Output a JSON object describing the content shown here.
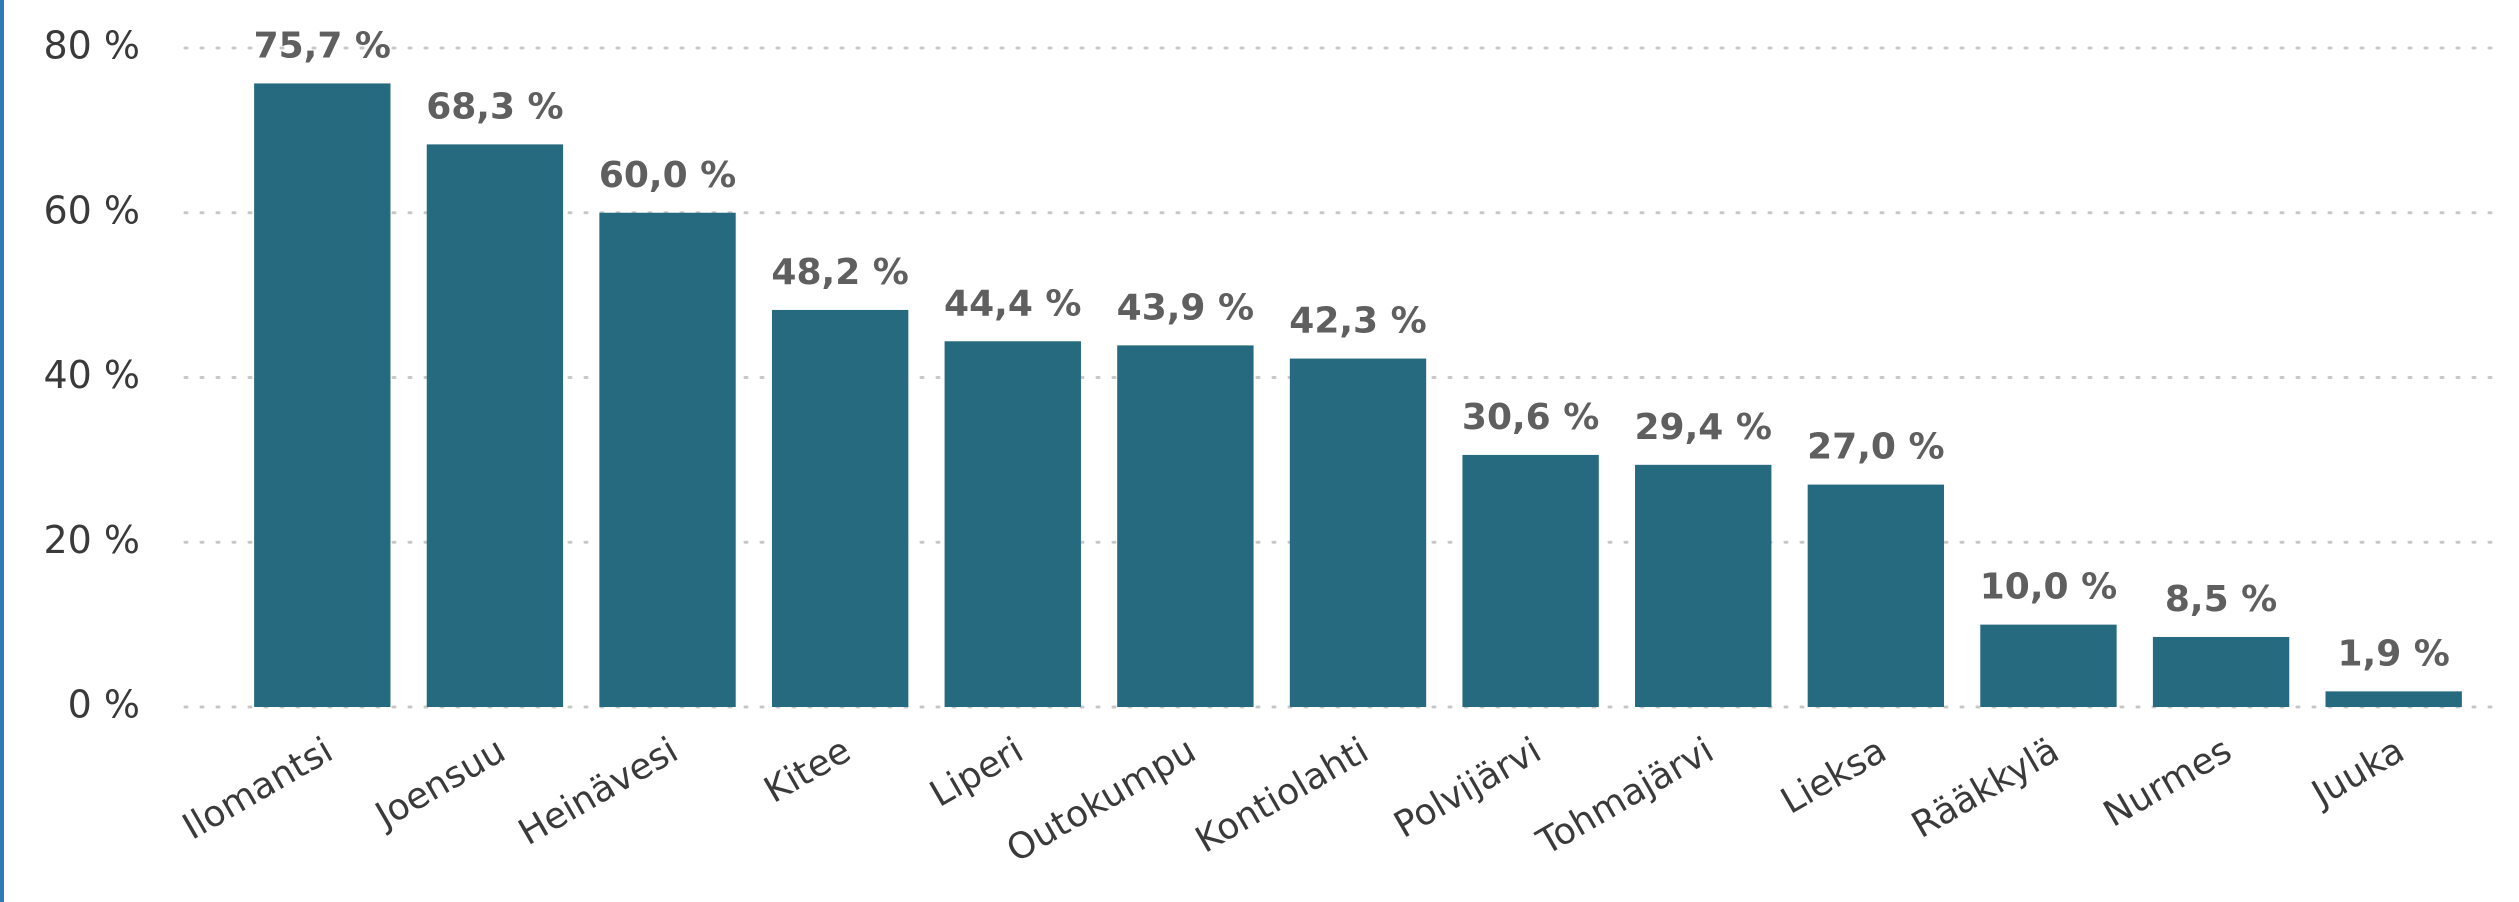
{
  "chart_data": {
    "type": "bar",
    "categories": [
      "Ilomantsi",
      "Joensuu",
      "Heinävesi",
      "Kitee",
      "Liperi",
      "Outokumpu",
      "Kontiolahti",
      "Polvijärvi",
      "Tohmajärvi",
      "Lieksa",
      "Rääkkylä",
      "Nurmes",
      "Juuka"
    ],
    "values": [
      75.7,
      68.3,
      60.0,
      48.2,
      44.4,
      43.9,
      42.3,
      30.6,
      29.4,
      27.0,
      10.0,
      8.5,
      1.9
    ],
    "value_labels": [
      "75,7 %",
      "68,3 %",
      "60,0 %",
      "48,2 %",
      "44,4 %",
      "43,9 %",
      "42,3 %",
      "30,6 %",
      "29,4 %",
      "27,0 %",
      "10,0 %",
      "8,5 %",
      "1,9 %"
    ],
    "color": "#266a80",
    "ylim": [
      0,
      80
    ],
    "yticks": [
      {
        "value": 0,
        "label": "0 %"
      },
      {
        "value": 20,
        "label": "20 %"
      },
      {
        "value": 40,
        "label": "40 %"
      },
      {
        "value": 60,
        "label": "60 %"
      },
      {
        "value": 80,
        "label": "80 %"
      }
    ],
    "grid": true
  }
}
